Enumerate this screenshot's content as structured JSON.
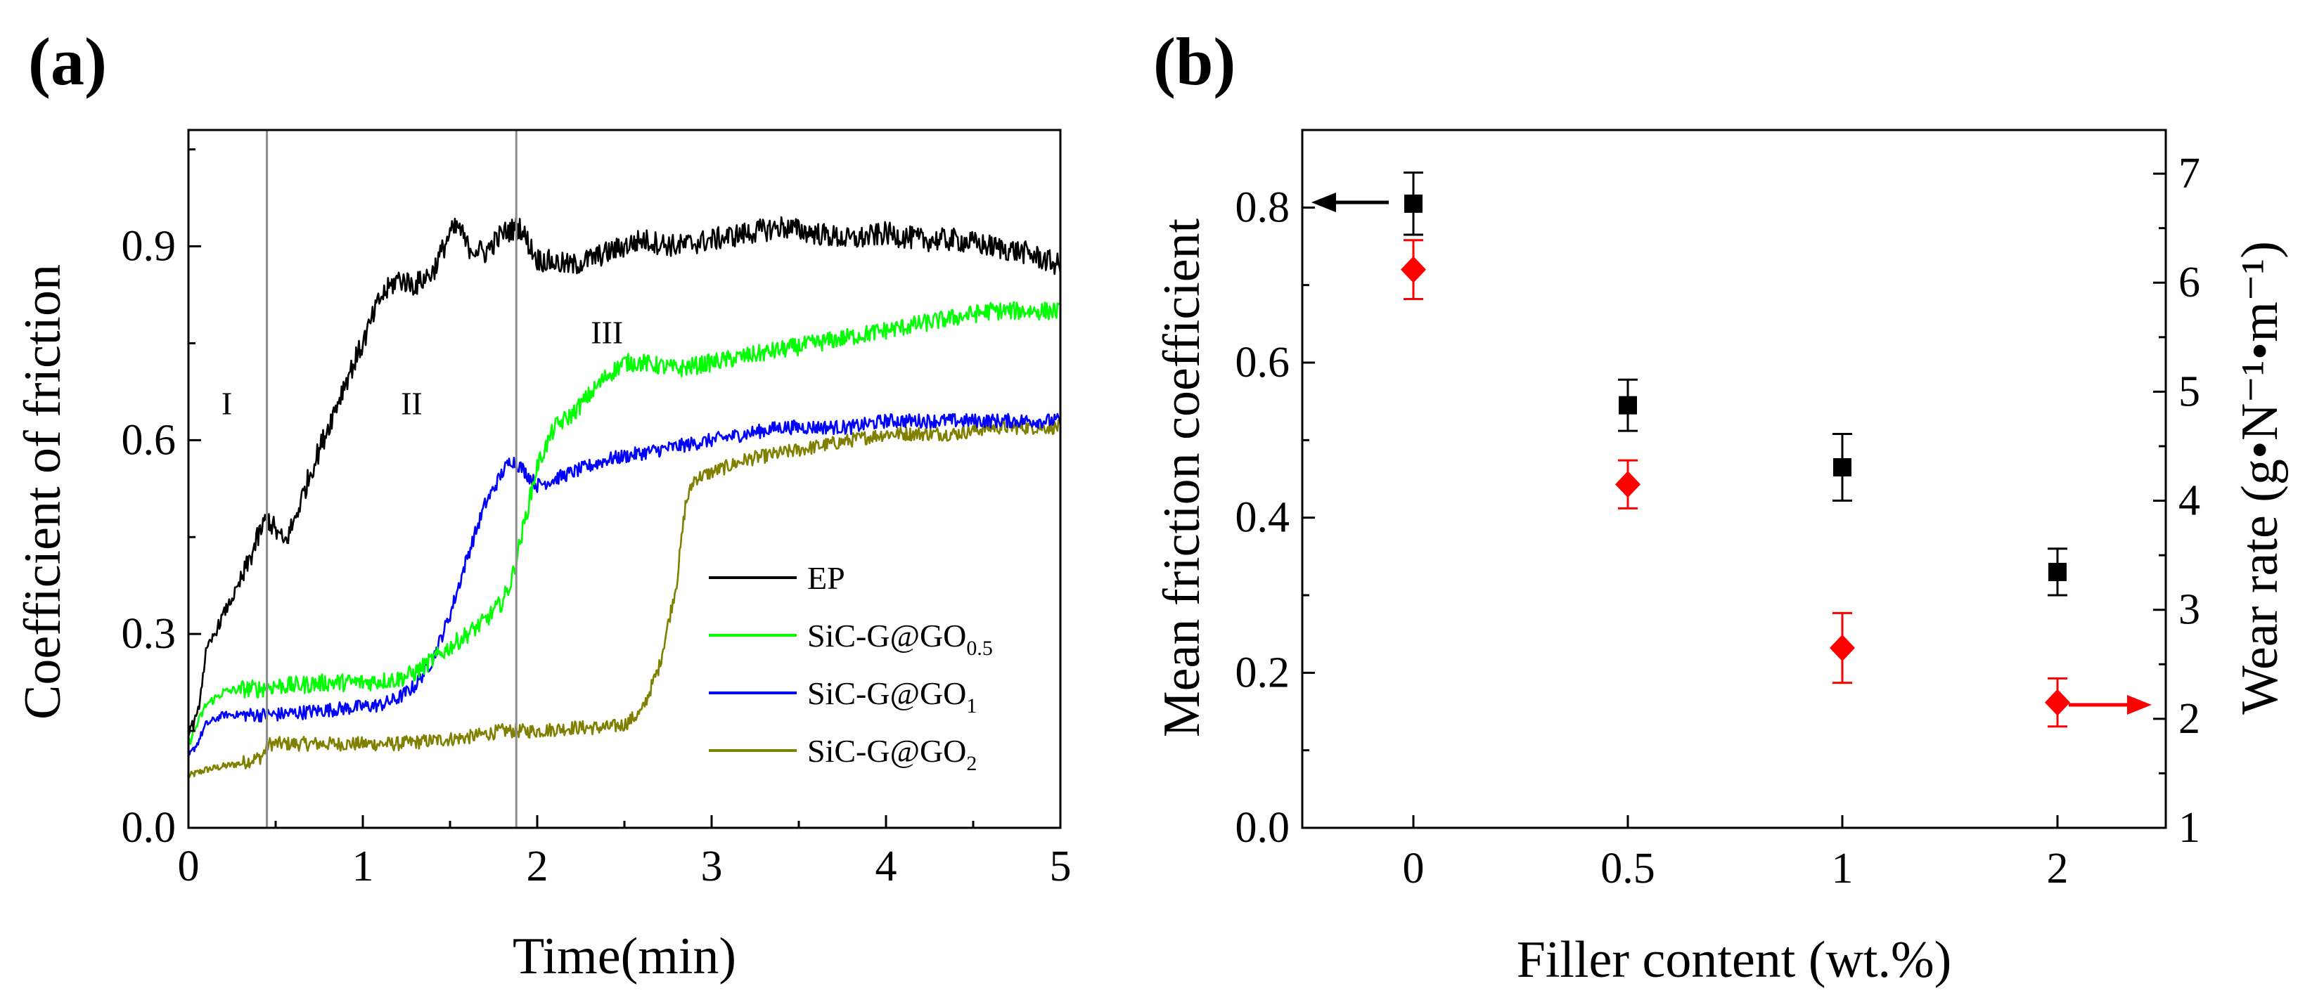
{
  "chart_data": [
    {
      "panel_label": "(a)",
      "type": "line",
      "xlabel": "Time(min)",
      "ylabel": "Coefficient of friction",
      "xlim": [
        0,
        5
      ],
      "ylim": [
        0,
        1.08
      ],
      "x_ticks": [
        0,
        1,
        2,
        3,
        4,
        5
      ],
      "x_tick_labels": [
        "0",
        "1",
        "2",
        "3",
        "4",
        "5"
      ],
      "y_ticks": [
        0,
        0.3,
        0.6,
        0.9
      ],
      "y_tick_labels": [
        "0.0",
        "0.3",
        "0.6",
        "0.9"
      ],
      "grid": false,
      "legend_position": "lower-right",
      "stage_dividers_x": [
        0.45,
        1.88
      ],
      "region_labels": [
        {
          "text": "I",
          "x": 0.22,
          "y": 0.64
        },
        {
          "text": "II",
          "x": 1.28,
          "y": 0.64
        },
        {
          "text": "III",
          "x": 2.4,
          "y": 0.75
        }
      ],
      "series": [
        {
          "name": "EP",
          "label_main": "EP",
          "label_sub": "",
          "color": "#000000",
          "x": [
            0,
            0.05,
            0.1,
            0.2,
            0.3,
            0.4,
            0.45,
            0.5,
            0.55,
            0.6,
            0.7,
            0.8,
            0.9,
            1.0,
            1.1,
            1.2,
            1.3,
            1.4,
            1.5,
            1.55,
            1.6,
            1.7,
            1.8,
            1.9,
            2.0,
            2.2,
            2.4,
            2.6,
            2.8,
            3.0,
            3.2,
            3.4,
            3.6,
            3.8,
            4.0,
            4.2,
            4.4,
            4.6,
            4.8,
            5.0
          ],
          "y": [
            0.15,
            0.17,
            0.27,
            0.33,
            0.38,
            0.45,
            0.48,
            0.46,
            0.44,
            0.47,
            0.55,
            0.62,
            0.69,
            0.75,
            0.82,
            0.85,
            0.84,
            0.86,
            0.92,
            0.93,
            0.9,
            0.89,
            0.92,
            0.93,
            0.88,
            0.87,
            0.89,
            0.91,
            0.9,
            0.91,
            0.92,
            0.93,
            0.92,
            0.91,
            0.92,
            0.91,
            0.91,
            0.9,
            0.89,
            0.87
          ],
          "noise": 0.018
        },
        {
          "name": "SiC-G@GO0.5",
          "label_main": "SiC-G@GO",
          "label_sub": "0.5",
          "color": "#00ff00",
          "x": [
            0,
            0.05,
            0.1,
            0.2,
            0.3,
            0.4,
            0.5,
            0.6,
            0.8,
            1.0,
            1.2,
            1.3,
            1.4,
            1.5,
            1.6,
            1.7,
            1.8,
            1.85,
            1.9,
            2.0,
            2.1,
            2.2,
            2.3,
            2.4,
            2.5,
            2.6,
            2.8,
            3.0,
            3.2,
            3.4,
            3.6,
            3.8,
            4.0,
            4.2,
            4.4,
            4.6,
            4.8,
            5.0
          ],
          "y": [
            0.13,
            0.16,
            0.19,
            0.21,
            0.215,
            0.215,
            0.22,
            0.22,
            0.225,
            0.225,
            0.23,
            0.24,
            0.26,
            0.28,
            0.3,
            0.32,
            0.35,
            0.38,
            0.44,
            0.56,
            0.62,
            0.64,
            0.67,
            0.7,
            0.72,
            0.72,
            0.71,
            0.72,
            0.73,
            0.74,
            0.75,
            0.76,
            0.77,
            0.78,
            0.79,
            0.8,
            0.8,
            0.8
          ],
          "noise": 0.014
        },
        {
          "name": "SiC-G@GO1",
          "label_main": "SiC-G@GO",
          "label_sub": "1",
          "color": "#0000ff",
          "x": [
            0,
            0.05,
            0.1,
            0.2,
            0.3,
            0.5,
            0.7,
            0.9,
            1.1,
            1.2,
            1.3,
            1.4,
            1.5,
            1.6,
            1.7,
            1.8,
            1.85,
            1.9,
            2.0,
            2.1,
            2.2,
            2.4,
            2.6,
            2.8,
            3.0,
            3.2,
            3.4,
            3.6,
            3.8,
            4.0,
            4.2,
            4.4,
            4.6,
            4.8,
            5.0
          ],
          "y": [
            0.11,
            0.13,
            0.16,
            0.175,
            0.175,
            0.175,
            0.18,
            0.185,
            0.19,
            0.2,
            0.22,
            0.26,
            0.33,
            0.42,
            0.5,
            0.55,
            0.57,
            0.56,
            0.53,
            0.54,
            0.55,
            0.57,
            0.58,
            0.59,
            0.6,
            0.61,
            0.62,
            0.62,
            0.62,
            0.63,
            0.63,
            0.63,
            0.63,
            0.63,
            0.63
          ],
          "noise": 0.011
        },
        {
          "name": "SiC-G@GO2",
          "label_main": "SiC-G@GO",
          "label_sub": "2",
          "color": "#808000",
          "x": [
            0,
            0.05,
            0.1,
            0.3,
            0.42,
            0.46,
            0.6,
            0.8,
            1.0,
            1.2,
            1.4,
            1.6,
            1.8,
            1.9,
            2.0,
            2.2,
            2.4,
            2.5,
            2.6,
            2.7,
            2.8,
            2.85,
            2.9,
            3.0,
            3.2,
            3.4,
            3.6,
            3.8,
            4.0,
            4.2,
            4.4,
            4.6,
            4.8,
            5.0
          ],
          "y": [
            0.08,
            0.085,
            0.09,
            0.1,
            0.11,
            0.13,
            0.13,
            0.13,
            0.13,
            0.13,
            0.135,
            0.14,
            0.15,
            0.15,
            0.15,
            0.155,
            0.155,
            0.16,
            0.18,
            0.25,
            0.38,
            0.5,
            0.54,
            0.55,
            0.57,
            0.58,
            0.59,
            0.6,
            0.61,
            0.61,
            0.61,
            0.62,
            0.62,
            0.62
          ],
          "noise": 0.011
        }
      ]
    },
    {
      "panel_label": "(b)",
      "type": "scatter",
      "xlabel": "Filler content (wt.%)",
      "ylabel": "Mean friction coefficient",
      "ylabel_right": "Wear rate (g•N⁻¹•m⁻¹)",
      "categories": [
        "0",
        "0.5",
        "1",
        "2"
      ],
      "ylim": [
        0.0,
        0.9
      ],
      "y_ticks": [
        0.0,
        0.2,
        0.4,
        0.6,
        0.8
      ],
      "y_tick_labels": [
        "0.0",
        "0.2",
        "0.4",
        "0.6",
        "0.8"
      ],
      "ylim_right": [
        1,
        7.4
      ],
      "y_ticks_right": [
        1,
        2,
        3,
        4,
        5,
        6,
        7
      ],
      "y_tick_labels_right": [
        "1",
        "2",
        "3",
        "4",
        "5",
        "6",
        "7"
      ],
      "grid": false,
      "series": [
        {
          "name": "Mean friction coefficient",
          "axis": "left",
          "marker": "square",
          "color": "#000000",
          "values": [
            0.805,
            0.545,
            0.465,
            0.33
          ],
          "errors": [
            0.04,
            0.033,
            0.043,
            0.03
          ]
        },
        {
          "name": "Wear rate",
          "axis": "right",
          "marker": "diamond",
          "color": "#ff0000",
          "values": [
            6.12,
            4.15,
            2.65,
            2.15
          ],
          "errors": [
            0.27,
            0.22,
            0.32,
            0.22
          ]
        }
      ]
    }
  ]
}
